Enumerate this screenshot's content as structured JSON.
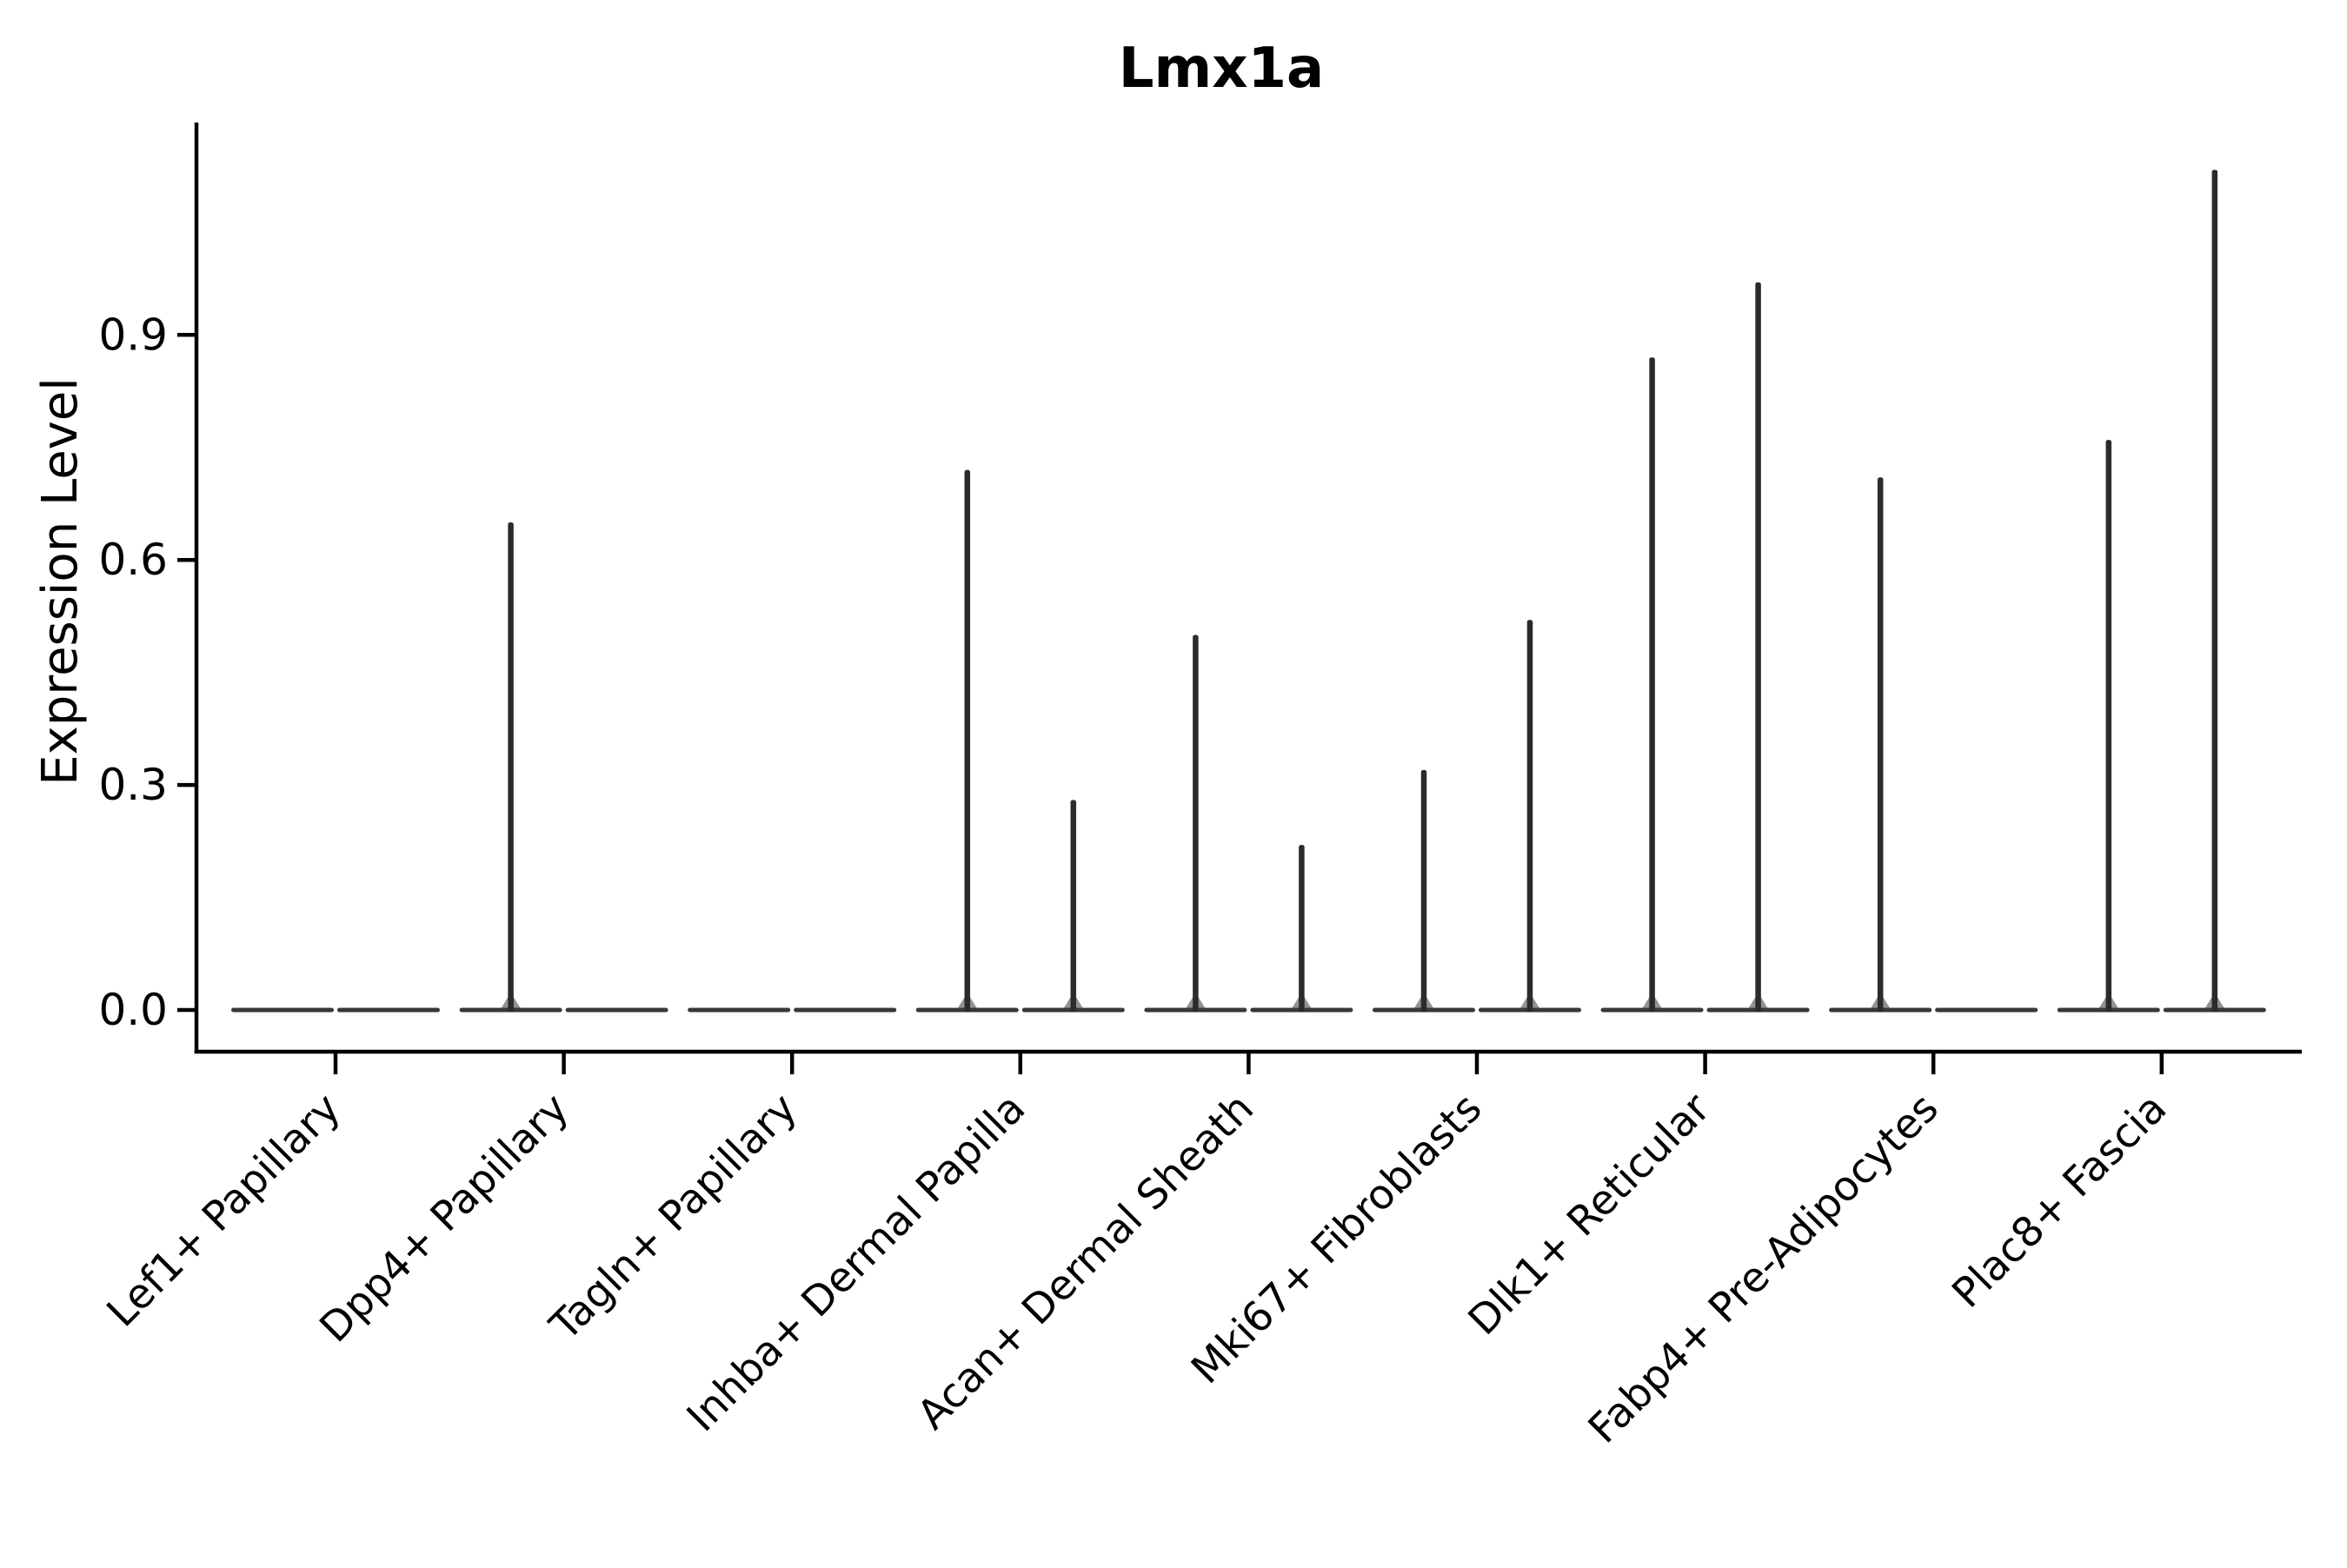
{
  "title": "Lmx1a",
  "y_axis": {
    "label": "Expression Level"
  },
  "colors": {
    "axis": "#000000",
    "text": "#000000",
    "violin_spike": "#2b2b2b",
    "violin_baseline": "#383838",
    "background": "#ffffff"
  },
  "chart_data": {
    "type": "violin",
    "title": "Lmx1a",
    "xlabel": "",
    "ylabel": "Expression Level",
    "ylim": [
      0,
      1.19
    ],
    "y_ticks": [
      0.0,
      0.3,
      0.6,
      0.9
    ],
    "y_tick_labels": [
      "0.0",
      "0.3",
      "0.6",
      "0.9"
    ],
    "grid": false,
    "legend": "none",
    "x_tick_rotation": 45,
    "categories": [
      "Lef1+ Papillary",
      "Dpp4+ Papillary",
      "Tagln+ Papillary",
      "Inhba+ Dermal Papilla",
      "Acan+ Dermal Sheath",
      "Mki67+ Fibroblasts",
      "Dlk1+ Reticular",
      "Fabp4+ Pre-Adipocytes",
      "Plac8+ Fascia"
    ],
    "description": "Two collapsed (needle-thin) violins per category; baseline mass at 0 with a thin spike to the maximum expression value",
    "series": [
      {
        "name": "left-violin",
        "max_expression": [
          0,
          0.65,
          0,
          0.72,
          0.5,
          0.32,
          0.87,
          0.71,
          0.76
        ]
      },
      {
        "name": "right-violin",
        "max_expression": [
          0,
          0,
          0,
          0.28,
          0.22,
          0.52,
          0.97,
          0,
          1.12
        ]
      }
    ],
    "baseline_value": 0.0
  }
}
